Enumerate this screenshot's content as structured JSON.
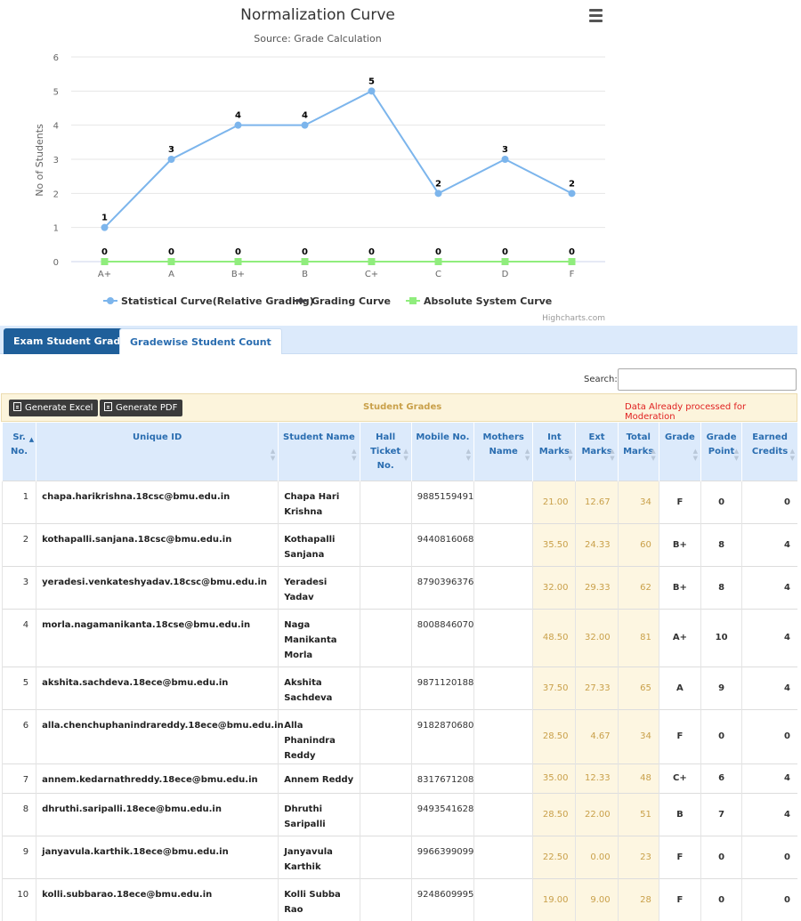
{
  "chart_data": {
    "type": "line",
    "title": "Normalization Curve",
    "subtitle": "Source: Grade Calculation",
    "ylabel": "No of Students",
    "xlabel": "",
    "categories": [
      "A+",
      "A",
      "B+",
      "B",
      "C+",
      "C",
      "D",
      "F"
    ],
    "ylim": [
      0,
      6
    ],
    "yticks": [
      0,
      1,
      2,
      3,
      4,
      5,
      6
    ],
    "grid": true,
    "legend_position": "bottom",
    "credits": "Highcharts.com",
    "series": [
      {
        "name": "Statistical Curve(Relative Grading)",
        "color": "#7cb5ec",
        "marker": "circle",
        "values": [
          1,
          3,
          4,
          4,
          5,
          2,
          3,
          2
        ]
      },
      {
        "name": "Grading Curve",
        "color": "#434348",
        "marker": "diamond",
        "values": [
          0,
          0,
          0,
          0,
          0,
          0,
          0,
          0
        ]
      },
      {
        "name": "Absolute System Curve",
        "color": "#90ed7d",
        "marker": "square",
        "values": [
          0,
          0,
          0,
          0,
          0,
          0,
          0,
          0
        ]
      }
    ]
  },
  "tabs": [
    {
      "label": "Exam Student Grade",
      "active": true
    },
    {
      "label": "Gradewise Student Count",
      "active": false
    }
  ],
  "search": {
    "label": "Search:",
    "value": ""
  },
  "toolbar": {
    "excel_label": "Generate Excel",
    "pdf_label": "Generate PDF",
    "title": "Student Grades",
    "status": "Data Already processed for Moderation"
  },
  "table": {
    "columns": [
      "Sr. No.",
      "Unique ID",
      "Student Name",
      "Hall Ticket No.",
      "Mobile No.",
      "Mothers Name",
      "Int Marks",
      "Ext Marks",
      "Total Marks",
      "Grade",
      "Grade Point",
      "Earned Credits"
    ],
    "rows": [
      {
        "sr": "1",
        "uid": "chapa.harikrishna.18csc@bmu.edu.in",
        "name": "Chapa Hari Krishna",
        "hall": "",
        "mobile": "9885159491",
        "mother": "",
        "int": "21.00",
        "ext": "12.67",
        "total": "34",
        "grade": "F",
        "gp": "0",
        "credits": "0"
      },
      {
        "sr": "2",
        "uid": "kothapalli.sanjana.18csc@bmu.edu.in",
        "name": "Kothapalli Sanjana",
        "hall": "",
        "mobile": "9440816068",
        "mother": "",
        "int": "35.50",
        "ext": "24.33",
        "total": "60",
        "grade": "B+",
        "gp": "8",
        "credits": "4"
      },
      {
        "sr": "3",
        "uid": "yeradesi.venkateshyadav.18csc@bmu.edu.in",
        "name": "Yeradesi Yadav",
        "hall": "",
        "mobile": "8790396376",
        "mother": "",
        "int": "32.00",
        "ext": "29.33",
        "total": "62",
        "grade": "B+",
        "gp": "8",
        "credits": "4"
      },
      {
        "sr": "4",
        "uid": "morla.nagamanikanta.18cse@bmu.edu.in",
        "name": "Naga Manikanta Morla",
        "hall": "",
        "mobile": "8008846070",
        "mother": "",
        "int": "48.50",
        "ext": "32.00",
        "total": "81",
        "grade": "A+",
        "gp": "10",
        "credits": "4"
      },
      {
        "sr": "5",
        "uid": "akshita.sachdeva.18ece@bmu.edu.in",
        "name": "Akshita Sachdeva",
        "hall": "",
        "mobile": "9871120188",
        "mother": "",
        "int": "37.50",
        "ext": "27.33",
        "total": "65",
        "grade": "A",
        "gp": "9",
        "credits": "4"
      },
      {
        "sr": "6",
        "uid": "alla.chenchuphanindrareddy.18ece@bmu.edu.in",
        "name": "Alla Phanindra Reddy",
        "hall": "",
        "mobile": "9182870680",
        "mother": "",
        "int": "28.50",
        "ext": "4.67",
        "total": "34",
        "grade": "F",
        "gp": "0",
        "credits": "0"
      },
      {
        "sr": "7",
        "uid": "annem.kedarnathreddy.18ece@bmu.edu.in",
        "name": "Annem Reddy",
        "hall": "",
        "mobile": "8317671208",
        "mother": "",
        "int": "35.00",
        "ext": "12.33",
        "total": "48",
        "grade": "C+",
        "gp": "6",
        "credits": "4"
      },
      {
        "sr": "8",
        "uid": "dhruthi.saripalli.18ece@bmu.edu.in",
        "name": "Dhruthi Saripalli",
        "hall": "",
        "mobile": "9493541628",
        "mother": "",
        "int": "28.50",
        "ext": "22.00",
        "total": "51",
        "grade": "B",
        "gp": "7",
        "credits": "4"
      },
      {
        "sr": "9",
        "uid": "janyavula.karthik.18ece@bmu.edu.in",
        "name": "Janyavula Karthik",
        "hall": "",
        "mobile": "9966399099",
        "mother": "",
        "int": "22.50",
        "ext": "0.00",
        "total": "23",
        "grade": "F",
        "gp": "0",
        "credits": "0"
      },
      {
        "sr": "10",
        "uid": "kolli.subbarao.18ece@bmu.edu.in",
        "name": "Kolli Subba Rao",
        "hall": "",
        "mobile": "9248609995",
        "mother": "",
        "int": "19.00",
        "ext": "9.00",
        "total": "28",
        "grade": "F",
        "gp": "0",
        "credits": "0"
      }
    ]
  }
}
